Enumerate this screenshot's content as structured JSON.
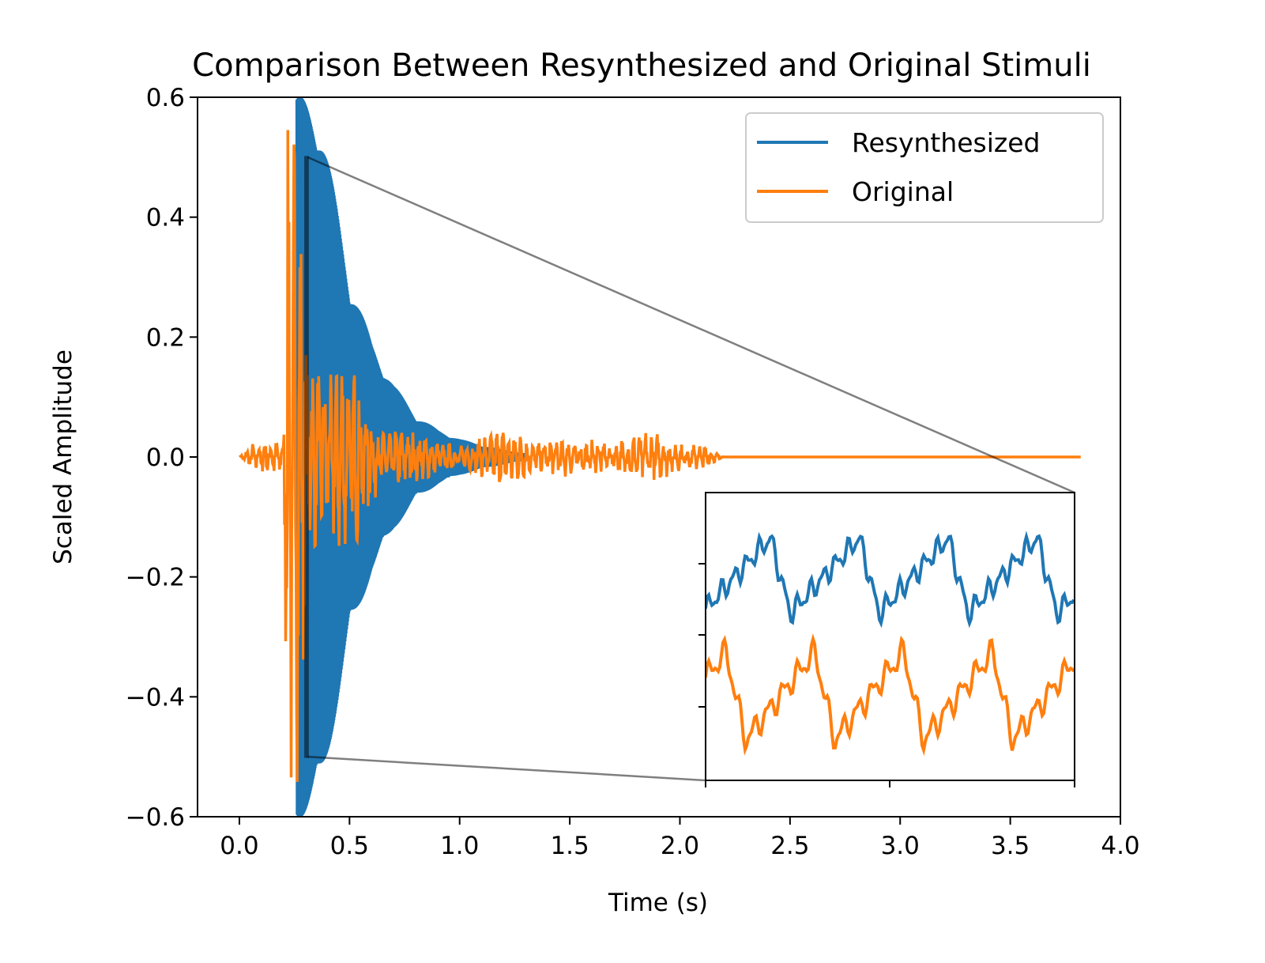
{
  "chart_data": {
    "type": "line",
    "title": "Comparison Between Resynthesized and Original Stimuli",
    "xlabel": "Time (s)",
    "ylabel": "Scaled Amplitude",
    "xlim": [
      -0.19,
      4.0
    ],
    "ylim": [
      -0.6,
      0.6
    ],
    "x_ticks": [
      0.0,
      0.5,
      1.0,
      1.5,
      2.0,
      2.5,
      3.0,
      3.5,
      4.0
    ],
    "x_tick_labels": [
      "0.0",
      "0.5",
      "1.0",
      "1.5",
      "2.0",
      "2.5",
      "3.0",
      "3.5",
      "4.0"
    ],
    "y_ticks": [
      0.6,
      0.4,
      0.2,
      0.0,
      -0.2,
      -0.4,
      -0.6
    ],
    "y_tick_labels": [
      "0.6",
      "0.4",
      "0.2",
      "0.0",
      "−0.2",
      "−0.4",
      "−0.6"
    ],
    "grid": false,
    "legend_position": "top-right",
    "series": [
      {
        "name": "Resynthesized",
        "color": "#1f77b4",
        "onset_s": 0.26,
        "peak_amplitude": 0.6,
        "envelope": [
          [
            0.26,
            0.6
          ],
          [
            0.35,
            0.6
          ],
          [
            0.4,
            0.5
          ],
          [
            0.5,
            0.3
          ],
          [
            0.6,
            0.19
          ],
          [
            0.7,
            0.12
          ],
          [
            0.8,
            0.07
          ],
          [
            0.9,
            0.045
          ],
          [
            1.0,
            0.03
          ],
          [
            1.1,
            0.02
          ],
          [
            1.2,
            0.012
          ],
          [
            1.3,
            0.006
          ]
        ]
      },
      {
        "name": "Original",
        "color": "#ff7f0e",
        "onset_s": 0.02,
        "end_s": 3.82,
        "envelope": [
          [
            0.0,
            0.0
          ],
          [
            0.05,
            0.02
          ],
          [
            0.1,
            0.03
          ],
          [
            0.2,
            0.03
          ],
          [
            0.22,
            0.6
          ],
          [
            0.25,
            0.6
          ],
          [
            0.3,
            0.3
          ],
          [
            0.35,
            0.25
          ],
          [
            0.4,
            0.18
          ],
          [
            0.5,
            0.13
          ],
          [
            0.6,
            0.08
          ],
          [
            0.7,
            0.06
          ],
          [
            0.8,
            0.045
          ],
          [
            1.0,
            0.03
          ],
          [
            1.3,
            0.035
          ],
          [
            1.5,
            0.04
          ],
          [
            1.8,
            0.03
          ],
          [
            2.1,
            0.03
          ],
          [
            2.15,
            0.01
          ],
          [
            2.2,
            0.0
          ],
          [
            3.82,
            0.0
          ]
        ]
      }
    ],
    "zoom_region": {
      "x": [
        0.3,
        0.31
      ],
      "y": [
        -0.5,
        0.5
      ]
    },
    "inset": {
      "position": "bottom-right",
      "tick_labels_shown": false
    }
  }
}
